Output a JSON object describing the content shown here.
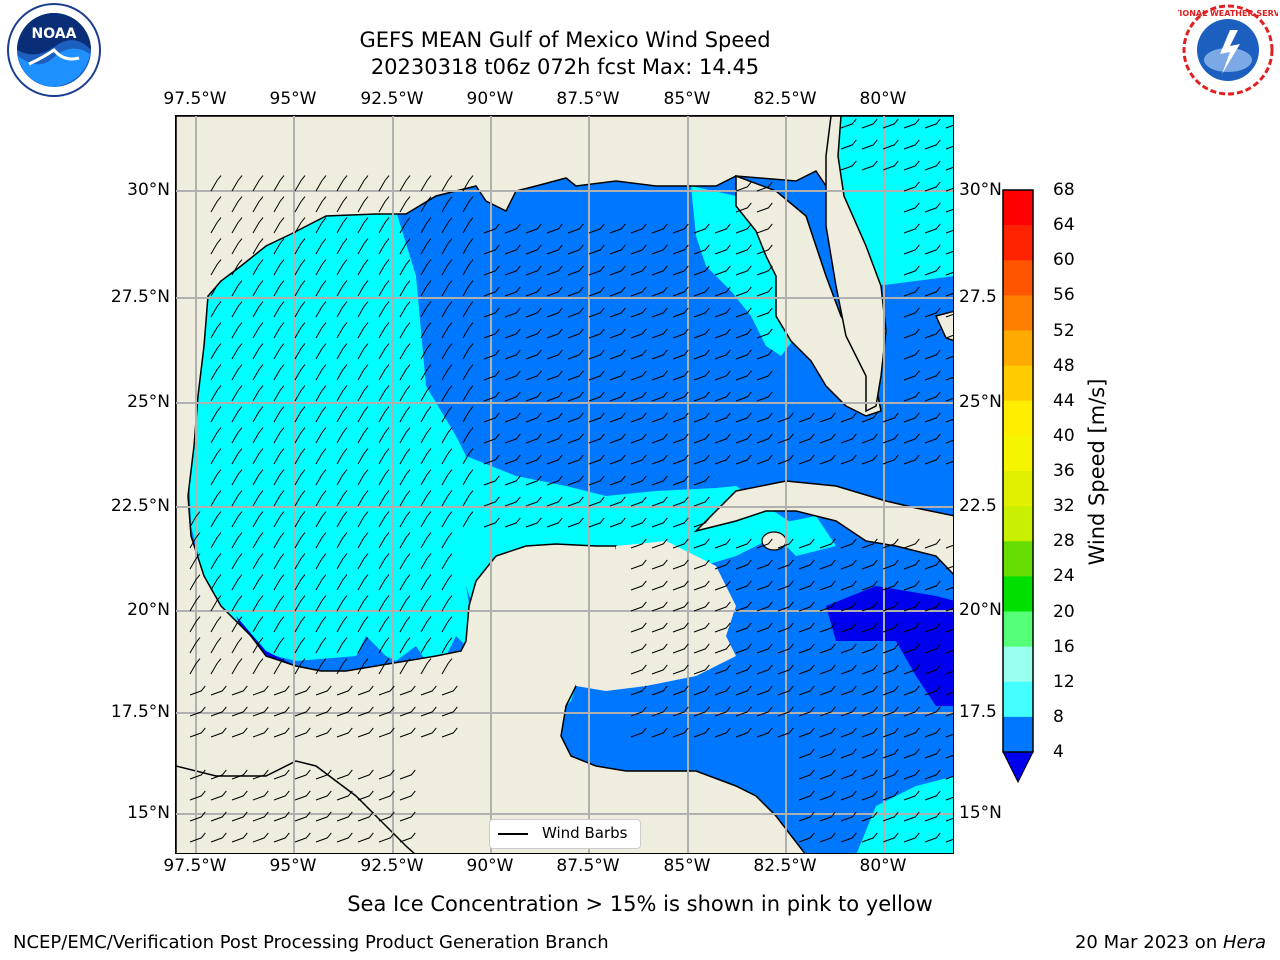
{
  "title": {
    "line1": "GEFS MEAN Gulf of Mexico Wind Speed",
    "line2": "20230318 t06z 072h fcst   Max: 14.45"
  },
  "logos": {
    "left_icon": "noaa-logo",
    "right_icon": "nws-logo"
  },
  "lon_labels": [
    "97.5°W",
    "95°W",
    "92.5°W",
    "90°W",
    "87.5°W",
    "85°W",
    "82.5°W",
    "80°W"
  ],
  "lat_labels_left": [
    "30°N",
    "27.5°N",
    "25°N",
    "22.5°N",
    "20°N",
    "17.5°N",
    "15°N"
  ],
  "lat_labels_right": [
    "30°N",
    "27.5",
    "25°N",
    "22.5",
    "20°N",
    "17.5",
    "15°N"
  ],
  "legend_label": "Wind Barbs",
  "colorbar": {
    "label": "Wind Speed [m/s]",
    "ticks": [
      "68",
      "64",
      "60",
      "56",
      "52",
      "48",
      "44",
      "40",
      "36",
      "32",
      "28",
      "24",
      "20",
      "16",
      "12",
      "8",
      "4"
    ],
    "colors": [
      "#ff0000",
      "#ff2200",
      "#ff5500",
      "#ff8000",
      "#ffaa00",
      "#ffcc00",
      "#ffee00",
      "#f5f500",
      "#e0f000",
      "#c8f000",
      "#66dd00",
      "#00e000",
      "#55ff77",
      "#99ffee",
      "#44ffff",
      "#00ffff",
      "#0077ff"
    ],
    "extend_color": "#0000ee"
  },
  "footer": {
    "left": "NCEP/EMC/Verification Post Processing Product Generation Branch",
    "right_date": "20 Mar 2023 on ",
    "right_host": "Hera",
    "caption": "Sea Ice Concentration > 15% is shown in pink to yellow"
  },
  "colors": {
    "land": "#efedde",
    "cyan": "#00ffff",
    "blue": "#0077ff",
    "deep_blue": "#0000ee",
    "grid": "#b0b0b0"
  }
}
